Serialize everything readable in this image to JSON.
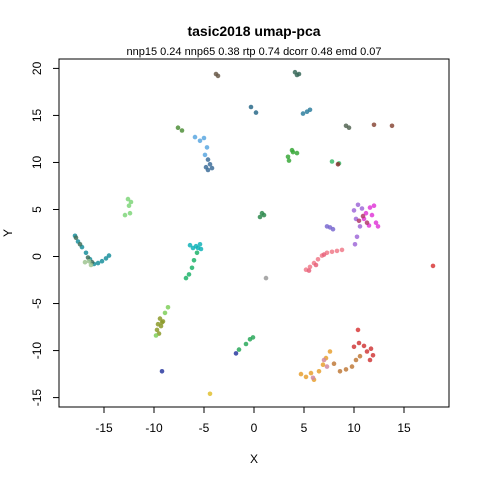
{
  "chart_data": {
    "type": "scatter",
    "title": "tasic2018 umap-pca",
    "subtitle": "nnp15 0.24 nnp65 0.38 rtp 0.74 dcorr 0.48 emd 0.07",
    "xlabel": "X",
    "ylabel": "Y",
    "xlim": [
      -19.5,
      19.5
    ],
    "ylim": [
      -16,
      21
    ],
    "xticks": [
      -15,
      -10,
      -5,
      0,
      5,
      10,
      15
    ],
    "yticks": [
      -15,
      -10,
      -5,
      0,
      5,
      10,
      15,
      20
    ],
    "grid": false,
    "legend": "none",
    "clusters": [
      {
        "color": "#1a8f9c",
        "points": [
          [
            -17.9,
            2.2
          ],
          [
            -17.6,
            1.6
          ],
          [
            -17.2,
            1.0
          ],
          [
            -16.8,
            0.4
          ],
          [
            -16.4,
            -0.3
          ],
          [
            -16.0,
            -0.8
          ],
          [
            -15.6,
            -0.7
          ],
          [
            -15.2,
            -0.5
          ],
          [
            -14.8,
            -0.2
          ],
          [
            -14.5,
            0.1
          ]
        ]
      },
      {
        "color": "#3f6e5a",
        "points": [
          [
            -17.8,
            2.0
          ],
          [
            -17.4,
            1.3
          ],
          [
            -16.6,
            -0.1
          ],
          [
            -16.2,
            -0.6
          ]
        ]
      },
      {
        "color": "#9fc490",
        "points": [
          [
            -16.5,
            -0.5
          ],
          [
            -16.9,
            -0.6
          ],
          [
            -16.3,
            -0.9
          ]
        ]
      },
      {
        "color": "#7fd67a",
        "points": [
          [
            -12.6,
            6.1
          ],
          [
            -12.3,
            5.8
          ],
          [
            -12.5,
            5.4
          ],
          [
            -12.9,
            4.4
          ],
          [
            -12.4,
            4.6
          ]
        ]
      },
      {
        "color": "#4f8f3a",
        "points": [
          [
            -7.6,
            13.7
          ],
          [
            -7.2,
            13.4
          ]
        ]
      },
      {
        "color": "#5aa7e0",
        "points": [
          [
            -5.9,
            12.7
          ],
          [
            -5.4,
            12.3
          ],
          [
            -5.0,
            12.6
          ],
          [
            -4.7,
            11.6
          ],
          [
            -4.9,
            10.8
          ]
        ]
      },
      {
        "color": "#3e6f9a",
        "points": [
          [
            -4.6,
            10.3
          ],
          [
            -4.4,
            9.8
          ],
          [
            -4.8,
            9.5
          ],
          [
            -4.2,
            9.4
          ],
          [
            -4.6,
            9.2
          ]
        ]
      },
      {
        "color": "#6a5a4a",
        "points": [
          [
            -3.8,
            19.4
          ],
          [
            -3.6,
            19.2
          ]
        ]
      },
      {
        "color": "#3a6a5a",
        "points": [
          [
            4.1,
            19.6
          ],
          [
            4.3,
            19.3
          ],
          [
            4.5,
            19.4
          ]
        ]
      },
      {
        "color": "#2a6a8a",
        "points": [
          [
            -0.3,
            15.9
          ],
          [
            0.2,
            15.3
          ]
        ]
      },
      {
        "color": "#2f7f9f",
        "points": [
          [
            4.9,
            15.2
          ],
          [
            5.3,
            15.4
          ],
          [
            5.6,
            15.6
          ]
        ]
      },
      {
        "color": "#556655",
        "points": [
          [
            9.2,
            13.9
          ],
          [
            9.5,
            13.7
          ]
        ]
      },
      {
        "color": "#8a4a3a",
        "points": [
          [
            12.0,
            14.0
          ],
          [
            13.8,
            13.9
          ]
        ]
      },
      {
        "color": "#3aa83a",
        "points": [
          [
            3.4,
            10.6
          ],
          [
            3.9,
            11.1
          ],
          [
            4.3,
            11.0
          ],
          [
            3.8,
            11.3
          ],
          [
            3.5,
            10.2
          ]
        ]
      },
      {
        "color": "#3cb86a",
        "points": [
          [
            7.8,
            10.1
          ],
          [
            8.5,
            9.9
          ]
        ]
      },
      {
        "color": "#8a3030",
        "points": [
          [
            8.4,
            9.8
          ]
        ]
      },
      {
        "color": "#2e8a4e",
        "points": [
          [
            0.6,
            4.2
          ],
          [
            0.8,
            4.6
          ],
          [
            1.0,
            4.4
          ]
        ]
      },
      {
        "color": "#12b3b8",
        "points": [
          [
            -6.4,
            1.2
          ],
          [
            -6.1,
            0.9
          ],
          [
            -5.8,
            1.1
          ],
          [
            -5.6,
            0.9
          ],
          [
            -5.4,
            1.3
          ],
          [
            -5.3,
            0.8
          ]
        ]
      },
      {
        "color": "#1fb36a",
        "points": [
          [
            -5.7,
            0.4
          ],
          [
            -6.0,
            -0.4
          ],
          [
            -6.2,
            -1.2
          ],
          [
            -6.5,
            -1.9
          ],
          [
            -6.8,
            -2.3
          ]
        ]
      },
      {
        "color": "#8c9a2a",
        "points": [
          [
            -9.4,
            -6.6
          ],
          [
            -9.1,
            -6.9
          ],
          [
            -9.6,
            -7.2
          ],
          [
            -9.3,
            -7.4
          ],
          [
            -9.7,
            -7.8
          ],
          [
            -9.5,
            -8.2
          ],
          [
            -9.2,
            -7.0
          ]
        ]
      },
      {
        "color": "#7fcf5a",
        "points": [
          [
            -8.6,
            -5.4
          ],
          [
            -8.9,
            -6.0
          ],
          [
            -9.8,
            -8.4
          ]
        ]
      },
      {
        "color": "#2a3aa0",
        "points": [
          [
            -9.2,
            -12.2
          ],
          [
            -1.8,
            -10.3
          ]
        ]
      },
      {
        "color": "#2aa85a",
        "points": [
          [
            -1.5,
            -9.9
          ],
          [
            -0.8,
            -9.3
          ],
          [
            -0.4,
            -8.8
          ],
          [
            -0.1,
            -8.6
          ]
        ]
      },
      {
        "color": "#e0c030",
        "points": [
          [
            -4.4,
            -14.6
          ]
        ]
      },
      {
        "color": "#9a9a9a",
        "points": [
          [
            1.2,
            -2.3
          ]
        ]
      },
      {
        "color": "#f07a8a",
        "points": [
          [
            5.2,
            -1.4
          ],
          [
            5.6,
            -1.1
          ],
          [
            6.0,
            -0.7
          ],
          [
            6.4,
            -0.3
          ],
          [
            6.8,
            0.1
          ],
          [
            7.3,
            0.4
          ],
          [
            7.8,
            0.5
          ],
          [
            8.3,
            0.6
          ],
          [
            8.8,
            0.7
          ]
        ]
      },
      {
        "color": "#e8607a",
        "points": [
          [
            5.5,
            -1.5
          ],
          [
            6.2,
            -0.9
          ],
          [
            7.0,
            0.2
          ]
        ]
      },
      {
        "color": "#7a6ad0",
        "points": [
          [
            7.6,
            3.1
          ],
          [
            7.9,
            2.9
          ],
          [
            7.3,
            3.2
          ]
        ]
      },
      {
        "color": "#a06ad8",
        "points": [
          [
            10.0,
            4.9
          ],
          [
            10.4,
            5.5
          ],
          [
            10.8,
            5.1
          ],
          [
            10.2,
            4.0
          ],
          [
            10.6,
            3.2
          ],
          [
            10.3,
            2.1
          ],
          [
            10.1,
            1.3
          ]
        ]
      },
      {
        "color": "#e03ad8",
        "points": [
          [
            11.2,
            4.6
          ],
          [
            11.6,
            5.2
          ],
          [
            12.0,
            5.4
          ],
          [
            11.8,
            4.4
          ],
          [
            12.2,
            3.6
          ],
          [
            11.5,
            3.3
          ],
          [
            11.0,
            4.0
          ],
          [
            12.4,
            3.2
          ]
        ]
      },
      {
        "color": "#b23a6a",
        "points": [
          [
            10.5,
            3.8
          ],
          [
            11.3,
            3.6
          ],
          [
            10.9,
            4.3
          ]
        ]
      },
      {
        "color": "#d83a3a",
        "points": [
          [
            17.9,
            -1.0
          ],
          [
            10.4,
            -7.8
          ]
        ]
      },
      {
        "color": "#e8a030",
        "points": [
          [
            4.7,
            -12.5
          ],
          [
            5.2,
            -12.8
          ],
          [
            5.7,
            -12.4
          ],
          [
            6.0,
            -13.1
          ],
          [
            6.5,
            -12.2
          ],
          [
            6.9,
            -11.5
          ],
          [
            7.2,
            -10.8
          ],
          [
            7.6,
            -10.1
          ]
        ]
      },
      {
        "color": "#c07a3a",
        "points": [
          [
            8.0,
            -11.4
          ],
          [
            8.6,
            -12.2
          ],
          [
            9.2,
            -12.0
          ],
          [
            9.8,
            -11.7
          ],
          [
            10.2,
            -11.0
          ],
          [
            10.6,
            -10.6
          ]
        ]
      },
      {
        "color": "#d03a3a",
        "points": [
          [
            10.0,
            -9.6
          ],
          [
            10.5,
            -9.2
          ],
          [
            11.0,
            -9.5
          ],
          [
            11.3,
            -10.1
          ],
          [
            11.7,
            -9.8
          ],
          [
            11.9,
            -10.5
          ],
          [
            11.6,
            -11.0
          ]
        ]
      },
      {
        "color": "#d08aa0",
        "points": [
          [
            7.0,
            -11.0
          ],
          [
            7.3,
            -11.7
          ],
          [
            5.9,
            -12.9
          ]
        ]
      }
    ]
  }
}
